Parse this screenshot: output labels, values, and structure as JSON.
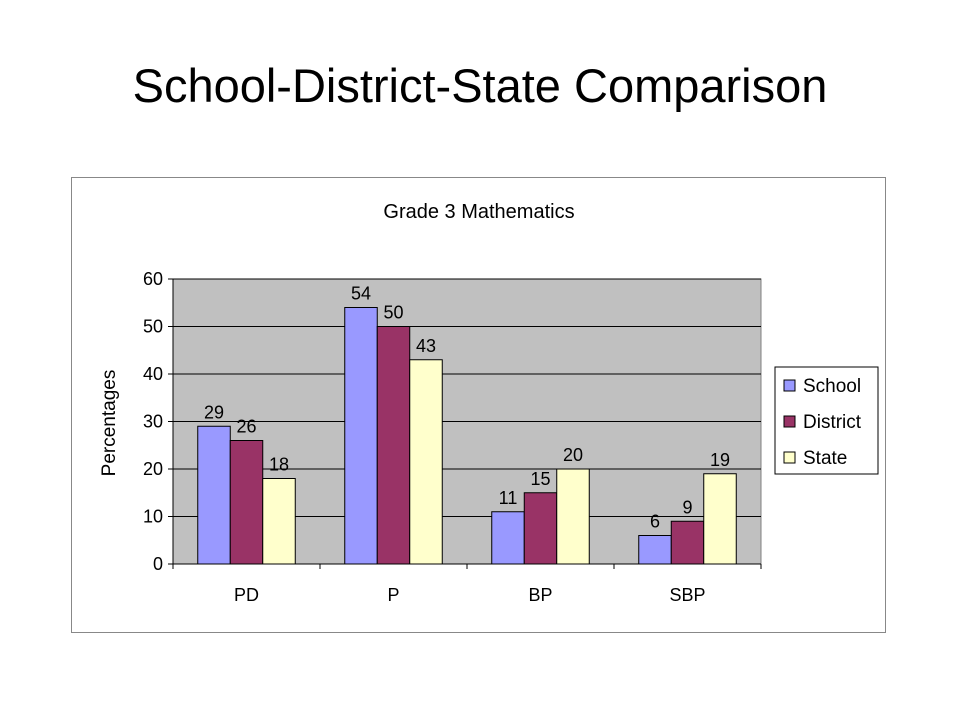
{
  "slide": {
    "title": "School-District-State Comparison"
  },
  "chart_data": {
    "type": "bar",
    "title": "Grade 3 Mathematics",
    "xlabel": "",
    "ylabel": "Percentages",
    "categories": [
      "PD",
      "P",
      "BP",
      "SBP"
    ],
    "series": [
      {
        "name": "School",
        "values": [
          29,
          54,
          11,
          6
        ],
        "color": "#9999ff"
      },
      {
        "name": "District",
        "values": [
          26,
          50,
          15,
          9
        ],
        "color": "#993366"
      },
      {
        "name": "State",
        "values": [
          18,
          43,
          20,
          19
        ],
        "color": "#ffffcc"
      }
    ],
    "ylim": [
      0,
      60
    ],
    "yticks": [
      0,
      10,
      20,
      30,
      40,
      50,
      60
    ],
    "grid": true,
    "plot_background": "#c0c0c0",
    "legend_position": "right"
  }
}
